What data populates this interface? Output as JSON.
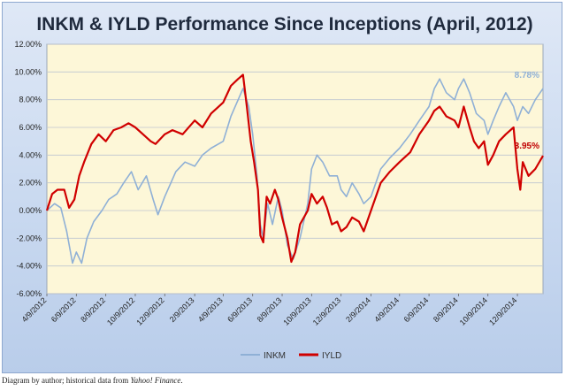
{
  "caption": {
    "text": "Diagram by author; historical data from ",
    "source": "Yahoo! Finance",
    "end": "."
  },
  "colors": {
    "inkm": "#8fb0d6",
    "iyld": "#d00000",
    "plot_bg": "#fdf7d8",
    "grid": "#bfc6d0"
  },
  "chart_data": {
    "type": "line",
    "title": "INKM & IYLD Performance Since Inceptions (April, 2012)",
    "xlabel": "",
    "ylabel": "",
    "ylim": [
      -6,
      12
    ],
    "yticks": [
      "-6.00%",
      "-4.00%",
      "-2.00%",
      "0.00%",
      "2.00%",
      "4.00%",
      "6.00%",
      "8.00%",
      "10.00%",
      "12.00%"
    ],
    "xlim": [
      "2012-04-09",
      "2015-01-31"
    ],
    "xticks": [
      "4/9/2012",
      "6/9/2012",
      "8/9/2012",
      "10/9/2012",
      "12/9/2012",
      "2/9/2013",
      "4/9/2013",
      "6/9/2013",
      "8/9/2013",
      "10/9/2013",
      "12/9/2013",
      "2/9/2014",
      "4/9/2014",
      "6/9/2014",
      "8/9/2014",
      "10/9/2014",
      "12/9/2014"
    ],
    "grid": true,
    "legend": "bottom",
    "annotations": [
      {
        "series": "INKM",
        "text": "8.78%"
      },
      {
        "series": "IYLD",
        "text": "3.95%"
      }
    ],
    "series": [
      {
        "name": "INKM",
        "points": [
          [
            "2012-04-09",
            0.0
          ],
          [
            "2012-04-25",
            0.5
          ],
          [
            "2012-05-08",
            0.2
          ],
          [
            "2012-05-20",
            -1.5
          ],
          [
            "2012-06-01",
            -3.8
          ],
          [
            "2012-06-09",
            -3.0
          ],
          [
            "2012-06-20",
            -3.8
          ],
          [
            "2012-07-01",
            -2.0
          ],
          [
            "2012-07-15",
            -0.8
          ],
          [
            "2012-08-01",
            0.0
          ],
          [
            "2012-08-15",
            0.8
          ],
          [
            "2012-09-01",
            1.2
          ],
          [
            "2012-09-15",
            2.0
          ],
          [
            "2012-10-01",
            2.8
          ],
          [
            "2012-10-15",
            1.5
          ],
          [
            "2012-11-01",
            2.5
          ],
          [
            "2012-11-15",
            0.8
          ],
          [
            "2012-11-25",
            -0.3
          ],
          [
            "2012-12-09",
            1.0
          ],
          [
            "2013-01-01",
            2.8
          ],
          [
            "2013-01-20",
            3.5
          ],
          [
            "2013-02-09",
            3.2
          ],
          [
            "2013-02-25",
            4.0
          ],
          [
            "2013-03-15",
            4.5
          ],
          [
            "2013-04-09",
            5.0
          ],
          [
            "2013-04-25",
            6.8
          ],
          [
            "2013-05-10",
            8.0
          ],
          [
            "2013-05-20",
            8.8
          ],
          [
            "2013-06-01",
            7.5
          ],
          [
            "2013-06-09",
            5.5
          ],
          [
            "2013-06-18",
            2.5
          ],
          [
            "2013-06-25",
            -1.0
          ],
          [
            "2013-07-01",
            -2.0
          ],
          [
            "2013-07-10",
            0.5
          ],
          [
            "2013-07-20",
            -1.0
          ],
          [
            "2013-08-01",
            1.0
          ],
          [
            "2013-08-09",
            0.0
          ],
          [
            "2013-08-20",
            -2.5
          ],
          [
            "2013-09-01",
            -3.5
          ],
          [
            "2013-09-15",
            -2.0
          ],
          [
            "2013-10-01",
            0.5
          ],
          [
            "2013-10-09",
            3.0
          ],
          [
            "2013-10-20",
            4.0
          ],
          [
            "2013-11-01",
            3.5
          ],
          [
            "2013-11-15",
            2.5
          ],
          [
            "2013-12-01",
            2.5
          ],
          [
            "2013-12-09",
            1.5
          ],
          [
            "2013-12-20",
            1.0
          ],
          [
            "2014-01-01",
            2.0
          ],
          [
            "2014-01-15",
            1.2
          ],
          [
            "2014-01-25",
            0.5
          ],
          [
            "2014-02-09",
            1.0
          ],
          [
            "2014-03-01",
            3.0
          ],
          [
            "2014-03-20",
            3.8
          ],
          [
            "2014-04-09",
            4.5
          ],
          [
            "2014-05-01",
            5.5
          ],
          [
            "2014-05-20",
            6.5
          ],
          [
            "2014-06-09",
            7.5
          ],
          [
            "2014-06-20",
            8.8
          ],
          [
            "2014-07-01",
            9.5
          ],
          [
            "2014-07-15",
            8.5
          ],
          [
            "2014-08-01",
            8.0
          ],
          [
            "2014-08-09",
            8.8
          ],
          [
            "2014-08-20",
            9.5
          ],
          [
            "2014-09-01",
            8.5
          ],
          [
            "2014-09-15",
            7.0
          ],
          [
            "2014-10-01",
            6.5
          ],
          [
            "2014-10-09",
            5.5
          ],
          [
            "2014-10-20",
            6.5
          ],
          [
            "2014-11-01",
            7.5
          ],
          [
            "2014-11-15",
            8.5
          ],
          [
            "2014-12-01",
            7.5
          ],
          [
            "2014-12-09",
            6.5
          ],
          [
            "2014-12-20",
            7.5
          ],
          [
            "2015-01-01",
            7.0
          ],
          [
            "2015-01-15",
            8.0
          ],
          [
            "2015-01-31",
            8.8
          ]
        ]
      },
      {
        "name": "IYLD",
        "points": [
          [
            "2012-04-09",
            0.0
          ],
          [
            "2012-04-20",
            1.2
          ],
          [
            "2012-05-01",
            1.5
          ],
          [
            "2012-05-15",
            1.5
          ],
          [
            "2012-05-25",
            0.2
          ],
          [
            "2012-06-05",
            0.8
          ],
          [
            "2012-06-15",
            2.5
          ],
          [
            "2012-06-25",
            3.5
          ],
          [
            "2012-07-10",
            4.8
          ],
          [
            "2012-07-25",
            5.5
          ],
          [
            "2012-08-09",
            5.0
          ],
          [
            "2012-08-25",
            5.8
          ],
          [
            "2012-09-10",
            6.0
          ],
          [
            "2012-09-25",
            6.3
          ],
          [
            "2012-10-09",
            6.0
          ],
          [
            "2012-10-25",
            5.5
          ],
          [
            "2012-11-10",
            5.0
          ],
          [
            "2012-11-20",
            4.8
          ],
          [
            "2012-12-09",
            5.5
          ],
          [
            "2012-12-25",
            5.8
          ],
          [
            "2013-01-15",
            5.5
          ],
          [
            "2013-02-09",
            6.5
          ],
          [
            "2013-02-25",
            6.0
          ],
          [
            "2013-03-15",
            7.0
          ],
          [
            "2013-04-09",
            7.8
          ],
          [
            "2013-04-25",
            9.0
          ],
          [
            "2013-05-10",
            9.5
          ],
          [
            "2013-05-20",
            9.8
          ],
          [
            "2013-05-28",
            7.5
          ],
          [
            "2013-06-05",
            5.0
          ],
          [
            "2013-06-12",
            3.5
          ],
          [
            "2013-06-20",
            1.5
          ],
          [
            "2013-06-25",
            -1.8
          ],
          [
            "2013-07-01",
            -2.3
          ],
          [
            "2013-07-08",
            1.0
          ],
          [
            "2013-07-15",
            0.5
          ],
          [
            "2013-07-25",
            1.5
          ],
          [
            "2013-08-01",
            0.8
          ],
          [
            "2013-08-09",
            -0.5
          ],
          [
            "2013-08-20",
            -2.0
          ],
          [
            "2013-08-28",
            -3.7
          ],
          [
            "2013-09-05",
            -3.0
          ],
          [
            "2013-09-15",
            -1.0
          ],
          [
            "2013-10-01",
            0.0
          ],
          [
            "2013-10-09",
            1.2
          ],
          [
            "2013-10-20",
            0.5
          ],
          [
            "2013-11-01",
            1.0
          ],
          [
            "2013-11-10",
            0.2
          ],
          [
            "2013-11-20",
            -1.0
          ],
          [
            "2013-12-01",
            -0.8
          ],
          [
            "2013-12-09",
            -1.5
          ],
          [
            "2013-12-20",
            -1.2
          ],
          [
            "2014-01-01",
            -0.5
          ],
          [
            "2014-01-15",
            -0.8
          ],
          [
            "2014-01-25",
            -1.5
          ],
          [
            "2014-02-09",
            0.0
          ],
          [
            "2014-03-01",
            2.0
          ],
          [
            "2014-03-20",
            2.8
          ],
          [
            "2014-04-09",
            3.5
          ],
          [
            "2014-05-01",
            4.2
          ],
          [
            "2014-05-20",
            5.5
          ],
          [
            "2014-06-09",
            6.5
          ],
          [
            "2014-06-20",
            7.2
          ],
          [
            "2014-07-01",
            7.5
          ],
          [
            "2014-07-15",
            6.8
          ],
          [
            "2014-08-01",
            6.5
          ],
          [
            "2014-08-09",
            6.0
          ],
          [
            "2014-08-20",
            7.5
          ],
          [
            "2014-09-01",
            6.0
          ],
          [
            "2014-09-10",
            5.0
          ],
          [
            "2014-09-20",
            4.5
          ],
          [
            "2014-10-01",
            5.0
          ],
          [
            "2014-10-09",
            3.3
          ],
          [
            "2014-10-20",
            4.0
          ],
          [
            "2014-11-01",
            5.0
          ],
          [
            "2014-11-15",
            5.5
          ],
          [
            "2014-12-01",
            6.0
          ],
          [
            "2014-12-09",
            3.0
          ],
          [
            "2014-12-15",
            1.5
          ],
          [
            "2014-12-20",
            3.5
          ],
          [
            "2015-01-01",
            2.5
          ],
          [
            "2015-01-15",
            3.0
          ],
          [
            "2015-01-31",
            3.95
          ]
        ]
      }
    ]
  }
}
